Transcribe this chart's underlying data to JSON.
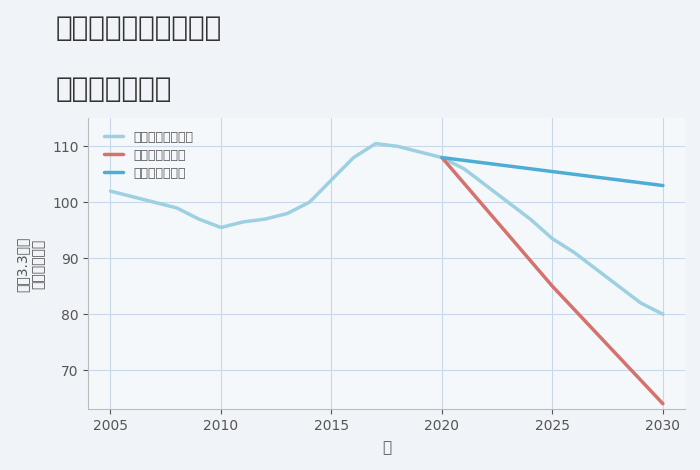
{
  "title_line1": "兵庫県西宮市林田町の",
  "title_line2": "土地の価格推移",
  "xlabel": "年",
  "ylabel": "単価（万円）",
  "ylabel2": "坪（3.3㎡）",
  "background_color": "#f0f4f8",
  "plot_bg_color": "#f5f8fb",
  "grid_color": "#c8d8e8",
  "xlim": [
    2004,
    2031
  ],
  "ylim": [
    63,
    115
  ],
  "xticks": [
    2005,
    2010,
    2015,
    2020,
    2025,
    2030
  ],
  "yticks": [
    70,
    80,
    90,
    100,
    110
  ],
  "good_scenario": {
    "label": "グッドシナリオ",
    "color": "#4eadd4",
    "linewidth": 2.5,
    "x": [
      2020,
      2021,
      2022,
      2023,
      2024,
      2025,
      2026,
      2027,
      2028,
      2029,
      2030
    ],
    "y": [
      108,
      107.5,
      107,
      106.5,
      106,
      105.5,
      105,
      104.5,
      104,
      103.5,
      103
    ]
  },
  "bad_scenario": {
    "label": "バッドシナリオ",
    "color": "#d4726e",
    "linewidth": 2.5,
    "x": [
      2020,
      2025,
      2030
    ],
    "y": [
      108,
      85,
      64
    ]
  },
  "normal_scenario": {
    "label": "ノーマルシナリオ",
    "color": "#9dd0e0",
    "linewidth": 2.5,
    "x": [
      2005,
      2006,
      2007,
      2008,
      2009,
      2010,
      2011,
      2012,
      2013,
      2014,
      2015,
      2016,
      2017,
      2018,
      2019,
      2020,
      2021,
      2022,
      2023,
      2024,
      2025,
      2026,
      2027,
      2028,
      2029,
      2030
    ],
    "y": [
      102,
      101,
      100,
      99,
      97,
      95.5,
      96.5,
      97,
      98,
      100,
      104,
      108,
      110.5,
      110,
      109,
      108,
      106,
      103,
      100,
      97,
      93.5,
      91,
      88,
      85,
      82,
      80
    ]
  },
  "title_color": "#333333",
  "title_fontsize": 20,
  "axis_label_color": "#555555",
  "tick_color": "#555555"
}
